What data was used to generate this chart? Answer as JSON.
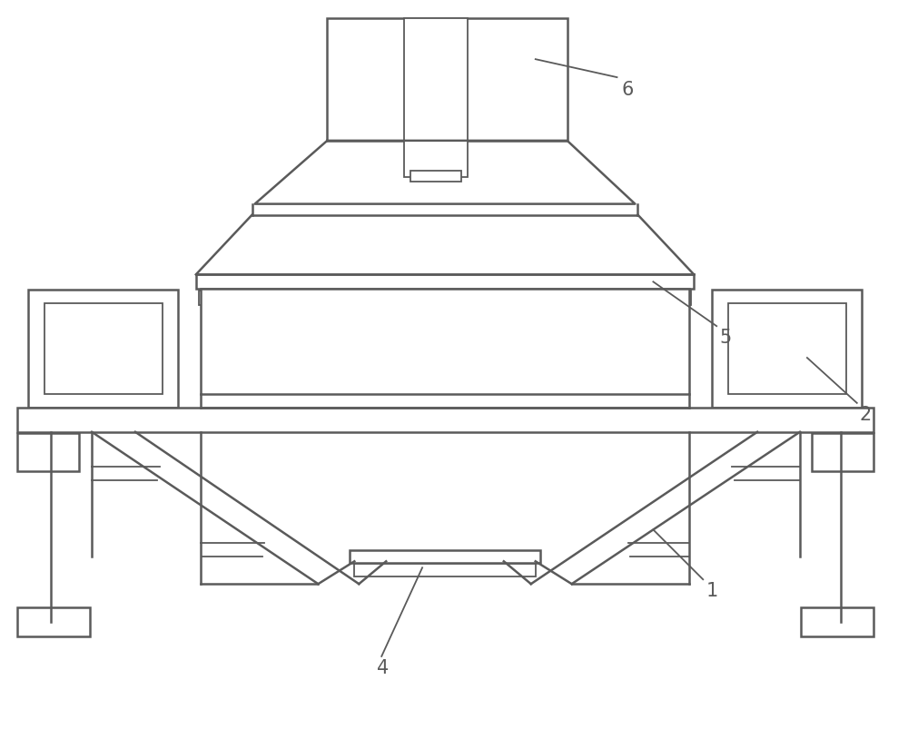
{
  "line_color": "#5a5a5a",
  "line_width": 1.8,
  "bg_color": "#ffffff",
  "fig_width": 10.0,
  "fig_height": 8.14,
  "label_fontsize": 15
}
